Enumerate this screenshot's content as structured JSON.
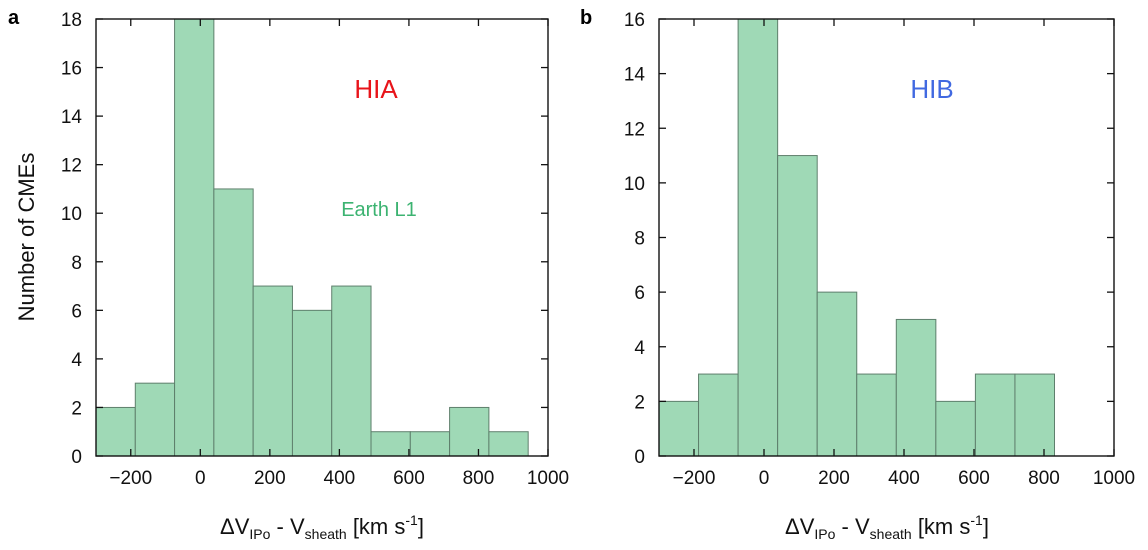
{
  "figure": {
    "xlabel_prefix": "ΔV",
    "xlabel_sub1": "IPo",
    "xlabel_mid": " - V",
    "xlabel_sub2": "sheath",
    "xlabel_unit": " [km s",
    "xlabel_sup": "-1",
    "xlabel_close": "]",
    "ylabel": "Number of CMEs"
  },
  "colors": {
    "bar_fill": "#9fd9b6",
    "bar_edge": "#5e7f6c",
    "hia": "#e8141a",
    "hib": "#4169e1",
    "earth": "#3cb371",
    "axis": "#111111"
  },
  "chart_data": [
    {
      "type": "bar",
      "panel": "a",
      "histogram": true,
      "bin_edges": [
        -300,
        -187,
        -74,
        39,
        152,
        265,
        378,
        491,
        604,
        717,
        830
      ],
      "values": [
        2,
        3,
        18,
        11,
        7,
        6,
        7,
        1,
        1,
        2,
        1
      ],
      "bin_width": 113,
      "first_edge": -300,
      "xlim": [
        -300,
        1000
      ],
      "ylim": [
        0,
        18
      ],
      "xticks": [
        -200,
        0,
        200,
        400,
        600,
        800,
        1000
      ],
      "yticks": [
        0,
        2,
        4,
        6,
        8,
        10,
        12,
        14,
        16,
        18
      ],
      "tick_labels_x": [
        "−200",
        "0",
        "200",
        "400",
        "600",
        "800",
        "1000"
      ],
      "tick_labels_y": [
        "0",
        "2",
        "4",
        "6",
        "8",
        "10",
        "12",
        "14",
        "16",
        "18"
      ],
      "annotations": [
        "HIA",
        "Earth L1"
      ],
      "grid": false
    },
    {
      "type": "bar",
      "panel": "b",
      "histogram": true,
      "values": [
        2,
        3,
        16,
        11,
        6,
        3,
        5,
        2,
        3,
        3
      ],
      "bin_width": 113,
      "first_edge": -300,
      "xlim": [
        -300,
        1000
      ],
      "ylim": [
        0,
        16
      ],
      "xticks": [
        -200,
        0,
        200,
        400,
        600,
        800,
        1000
      ],
      "yticks": [
        0,
        2,
        4,
        6,
        8,
        10,
        12,
        14,
        16
      ],
      "tick_labels_x": [
        "−200",
        "0",
        "200",
        "400",
        "600",
        "800",
        "1000"
      ],
      "tick_labels_y": [
        "0",
        "2",
        "4",
        "6",
        "8",
        "10",
        "12",
        "14",
        "16"
      ],
      "annotations": [
        "HIB"
      ],
      "grid": false
    }
  ]
}
